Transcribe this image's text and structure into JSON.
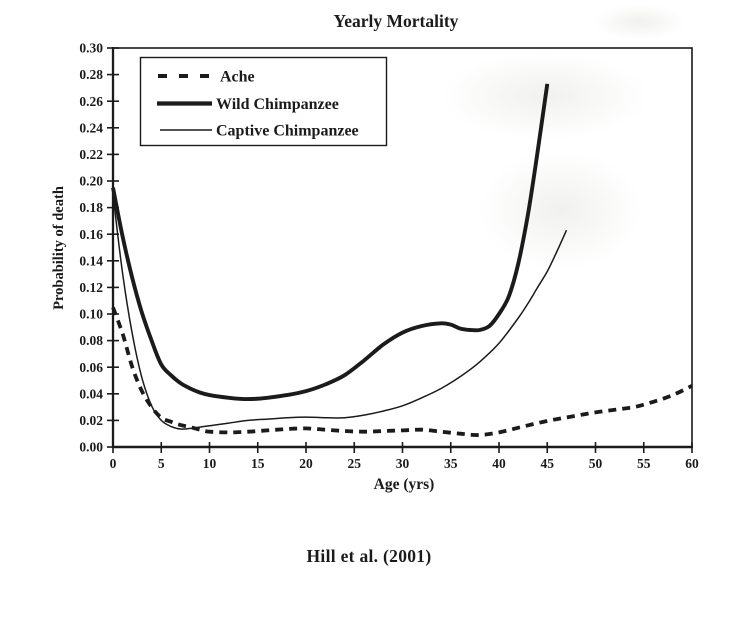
{
  "page": {
    "background_color": "#ffffff",
    "ink_color": "#1b1b1b"
  },
  "chart_data": {
    "type": "line",
    "title": "Yearly Mortality",
    "caption": "Hill et al. (2001)",
    "xlabel": "Age (yrs)",
    "ylabel": "Probability of death",
    "xlim": [
      0,
      60
    ],
    "ylim": [
      0.0,
      0.3
    ],
    "x_ticks": [
      0,
      5,
      10,
      15,
      20,
      25,
      30,
      35,
      40,
      45,
      50,
      55,
      60
    ],
    "y_ticks": [
      "0.00",
      "0.02",
      "0.04",
      "0.06",
      "0.08",
      "0.10",
      "0.12",
      "0.14",
      "0.16",
      "0.18",
      "0.20",
      "0.22",
      "0.24",
      "0.26",
      "0.28",
      "0.30"
    ],
    "grid": false,
    "legend": {
      "position": "inside-top-left",
      "border": true
    },
    "line_color": "#1b1b1b",
    "series": [
      {
        "name": "Ache",
        "style": "dashed",
        "points": [
          [
            0,
            0.105
          ],
          [
            1,
            0.085
          ],
          [
            2,
            0.06
          ],
          [
            3,
            0.042
          ],
          [
            4,
            0.03
          ],
          [
            5,
            0.022
          ],
          [
            6,
            0.019
          ],
          [
            7,
            0.0165
          ],
          [
            8,
            0.015
          ],
          [
            9,
            0.013
          ],
          [
            10,
            0.0115
          ],
          [
            12,
            0.011
          ],
          [
            14,
            0.0115
          ],
          [
            16,
            0.0125
          ],
          [
            18,
            0.0135
          ],
          [
            20,
            0.014
          ],
          [
            22,
            0.013
          ],
          [
            24,
            0.012
          ],
          [
            26,
            0.0115
          ],
          [
            28,
            0.012
          ],
          [
            30,
            0.0125
          ],
          [
            32,
            0.013
          ],
          [
            34,
            0.0115
          ],
          [
            36,
            0.01
          ],
          [
            38,
            0.009
          ],
          [
            40,
            0.011
          ],
          [
            42,
            0.0145
          ],
          [
            44,
            0.018
          ],
          [
            46,
            0.021
          ],
          [
            48,
            0.0235
          ],
          [
            50,
            0.026
          ],
          [
            52,
            0.028
          ],
          [
            54,
            0.03
          ],
          [
            56,
            0.034
          ],
          [
            58,
            0.039
          ],
          [
            60,
            0.046
          ]
        ]
      },
      {
        "name": "Wild Chimpanzee",
        "style": "solid-thick",
        "points": [
          [
            0,
            0.195
          ],
          [
            1,
            0.158
          ],
          [
            2,
            0.127
          ],
          [
            3,
            0.101
          ],
          [
            4,
            0.08
          ],
          [
            5,
            0.062
          ],
          [
            6,
            0.054
          ],
          [
            7,
            0.048
          ],
          [
            8,
            0.044
          ],
          [
            9,
            0.041
          ],
          [
            10,
            0.039
          ],
          [
            12,
            0.037
          ],
          [
            14,
            0.036
          ],
          [
            16,
            0.037
          ],
          [
            18,
            0.039
          ],
          [
            20,
            0.042
          ],
          [
            22,
            0.047
          ],
          [
            24,
            0.054
          ],
          [
            26,
            0.065
          ],
          [
            28,
            0.077
          ],
          [
            30,
            0.086
          ],
          [
            32,
            0.091
          ],
          [
            34,
            0.093
          ],
          [
            35,
            0.092
          ],
          [
            36,
            0.089
          ],
          [
            37,
            0.088
          ],
          [
            38,
            0.088
          ],
          [
            39,
            0.091
          ],
          [
            40,
            0.1
          ],
          [
            41,
            0.113
          ],
          [
            42,
            0.138
          ],
          [
            43,
            0.175
          ],
          [
            44,
            0.222
          ],
          [
            45,
            0.273
          ]
        ]
      },
      {
        "name": "Captive Chimpanzee",
        "style": "solid-thin",
        "points": [
          [
            0,
            0.19
          ],
          [
            1,
            0.13
          ],
          [
            2,
            0.085
          ],
          [
            3,
            0.052
          ],
          [
            4,
            0.031
          ],
          [
            5,
            0.02
          ],
          [
            6,
            0.0155
          ],
          [
            7,
            0.0135
          ],
          [
            8,
            0.014
          ],
          [
            9,
            0.015
          ],
          [
            10,
            0.016
          ],
          [
            12,
            0.018
          ],
          [
            14,
            0.02
          ],
          [
            16,
            0.021
          ],
          [
            18,
            0.022
          ],
          [
            20,
            0.0225
          ],
          [
            22,
            0.022
          ],
          [
            24,
            0.022
          ],
          [
            26,
            0.024
          ],
          [
            28,
            0.027
          ],
          [
            30,
            0.031
          ],
          [
            32,
            0.037
          ],
          [
            34,
            0.044
          ],
          [
            36,
            0.053
          ],
          [
            38,
            0.064
          ],
          [
            40,
            0.078
          ],
          [
            42,
            0.097
          ],
          [
            43,
            0.108
          ],
          [
            44,
            0.12
          ],
          [
            45,
            0.132
          ],
          [
            46,
            0.147
          ],
          [
            47,
            0.163
          ]
        ]
      }
    ]
  }
}
